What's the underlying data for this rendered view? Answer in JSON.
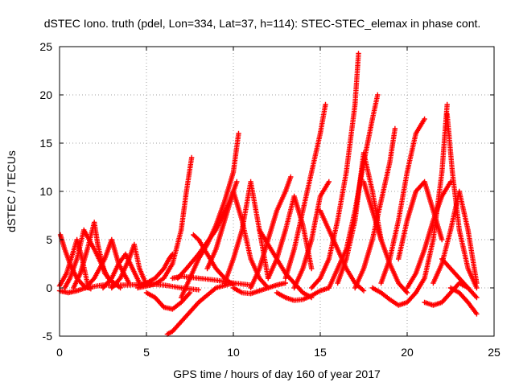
{
  "chart_data": {
    "type": "scatter",
    "title": "dSTEC Iono. truth (pdel, Lon=334, Lat=37, h=114): STEC-STEC_elemax in phase cont.",
    "xlabel": "GPS time / hours of day 160 of year 2017",
    "ylabel": "dSTEC  / TECUs",
    "xlim": [
      0,
      25
    ],
    "ylim": [
      -5,
      25
    ],
    "xticks": [
      0,
      5,
      10,
      15,
      20,
      25
    ],
    "yticks": [
      -5,
      0,
      5,
      10,
      15,
      20,
      25
    ],
    "xtick_labels": [
      "0",
      "5",
      "10",
      "15",
      "20",
      "25"
    ],
    "ytick_labels": [
      "-5",
      "0",
      "5",
      "10",
      "15",
      "20",
      "25"
    ],
    "grid": true,
    "legend": "none",
    "marker": "+",
    "color": "#ff0000",
    "series": [
      {
        "x": [
          0.05,
          0.3,
          0.6,
          1.0,
          1.4,
          1.8
        ],
        "y": [
          5.5,
          4.0,
          2.5,
          1.0,
          0.2,
          -0.1
        ]
      },
      {
        "x": [
          0.0,
          0.4,
          0.8,
          1.0,
          1.3,
          1.6
        ],
        "y": [
          0.2,
          1.5,
          3.8,
          5.0,
          3.0,
          0.5
        ]
      },
      {
        "x": [
          0.3,
          0.6,
          1.0,
          1.4,
          2.0,
          2.8,
          3.5
        ],
        "y": [
          0.0,
          1.0,
          3.0,
          6.0,
          4.0,
          1.0,
          0.0
        ]
      },
      {
        "x": [
          0.8,
          1.2,
          1.6,
          2.0,
          2.2,
          2.6,
          3.2
        ],
        "y": [
          0.0,
          1.5,
          4.0,
          6.8,
          4.5,
          1.5,
          0.3
        ]
      },
      {
        "x": [
          1.5,
          2.0,
          2.6,
          3.0,
          3.4,
          4.0
        ],
        "y": [
          0.0,
          1.0,
          3.0,
          5.0,
          2.5,
          0.5
        ]
      },
      {
        "x": [
          2.5,
          3.0,
          3.4,
          3.8,
          4.2,
          4.6
        ],
        "y": [
          0.0,
          1.0,
          2.5,
          3.5,
          2.0,
          0.5
        ]
      },
      {
        "x": [
          3.0,
          3.5,
          4.0,
          4.3,
          4.6,
          5.0
        ],
        "y": [
          0.0,
          1.0,
          3.0,
          4.5,
          2.0,
          0.3
        ]
      },
      {
        "x": [
          0.0,
          0.5,
          1.0,
          1.5,
          2.5,
          4.0,
          5.0,
          6.0,
          7.0,
          8.0
        ],
        "y": [
          -0.3,
          -0.5,
          -0.3,
          0.0,
          0.3,
          0.3,
          0.4,
          0.3,
          0.0,
          -0.2
        ]
      },
      {
        "x": [
          4.5,
          5.0,
          5.5,
          6.0,
          6.3,
          6.5
        ],
        "y": [
          0.2,
          0.5,
          1.0,
          2.0,
          3.0,
          3.5
        ]
      },
      {
        "x": [
          4.5,
          5.0,
          5.5,
          6.0,
          6.5,
          7.0,
          7.3,
          7.6
        ],
        "y": [
          0.0,
          0.2,
          0.4,
          1.0,
          2.5,
          6.0,
          10.0,
          13.5
        ]
      },
      {
        "x": [
          5.0,
          5.5,
          6.0,
          6.5,
          7.0,
          7.5
        ],
        "y": [
          -0.5,
          -1.0,
          -2.0,
          -2.2,
          -1.5,
          -0.5
        ]
      },
      {
        "x": [
          6.2,
          6.5,
          7.0,
          7.5,
          8.0,
          9.0,
          10.0
        ],
        "y": [
          -4.8,
          -4.5,
          -3.5,
          -2.5,
          -1.5,
          0.0,
          0.5
        ]
      },
      {
        "x": [
          7.0,
          7.5,
          8.0,
          8.5,
          9.0,
          9.5,
          10.0,
          10.3
        ],
        "y": [
          -1.0,
          1.0,
          3.0,
          4.5,
          6.5,
          9.0,
          12.0,
          16.0
        ]
      },
      {
        "x": [
          6.8,
          7.3,
          8.0,
          9.0,
          9.8,
          10.2
        ],
        "y": [
          1.0,
          2.0,
          3.5,
          6.0,
          9.0,
          11.0
        ]
      },
      {
        "x": [
          7.7,
          8.0,
          8.5,
          9.0,
          9.5,
          10.0
        ],
        "y": [
          5.5,
          5.0,
          3.5,
          2.0,
          1.0,
          0.3
        ]
      },
      {
        "x": [
          6.5,
          7.0,
          8.0,
          9.0,
          10.0,
          11.0
        ],
        "y": [
          1.0,
          1.2,
          1.0,
          0.8,
          0.5,
          0.3
        ]
      },
      {
        "x": [
          8.5,
          9.0,
          9.5,
          10.0,
          10.5,
          11.0,
          11.5,
          12.0
        ],
        "y": [
          2.0,
          4.0,
          7.0,
          10.0,
          7.0,
          3.0,
          1.0,
          0.0
        ]
      },
      {
        "x": [
          9.5,
          10.0,
          10.5,
          11.0,
          11.5,
          12.0
        ],
        "y": [
          0.5,
          3.0,
          6.0,
          11.0,
          6.0,
          1.0
        ]
      },
      {
        "x": [
          10.0,
          10.5,
          11.0,
          11.5,
          12.0,
          12.5,
          13.0
        ],
        "y": [
          0.0,
          -0.5,
          -0.6,
          -0.3,
          0.0,
          0.3,
          0.5
        ]
      },
      {
        "x": [
          11.0,
          11.5,
          12.0,
          12.5,
          13.0,
          13.3
        ],
        "y": [
          0.0,
          2.0,
          5.0,
          8.0,
          10.0,
          11.5
        ]
      },
      {
        "x": [
          11.5,
          12.0,
          12.5,
          13.0,
          13.5,
          14.0,
          14.5
        ],
        "y": [
          6.0,
          4.5,
          3.0,
          1.5,
          0.5,
          -0.5,
          -1.0
        ]
      },
      {
        "x": [
          12.0,
          12.5,
          13.0,
          13.5,
          14.0,
          14.5
        ],
        "y": [
          1.0,
          3.0,
          6.0,
          9.5,
          6.5,
          2.0
        ]
      },
      {
        "x": [
          12.5,
          13.0,
          13.5,
          14.0,
          14.5,
          15.0,
          15.5
        ],
        "y": [
          -0.5,
          -1.0,
          -1.3,
          -1.2,
          -0.8,
          -0.3,
          0.0
        ]
      },
      {
        "x": [
          13.0,
          13.5,
          14.0,
          14.5,
          15.0,
          15.3
        ],
        "y": [
          1.0,
          4.0,
          8.0,
          12.0,
          16.0,
          19.0
        ]
      },
      {
        "x": [
          13.5,
          14.0,
          14.5,
          15.0,
          15.5
        ],
        "y": [
          0.0,
          2.0,
          5.0,
          9.5,
          11.0
        ]
      },
      {
        "x": [
          15.0,
          15.5,
          16.0,
          16.5,
          17.0,
          17.5
        ],
        "y": [
          8.0,
          6.0,
          4.0,
          2.0,
          0.5,
          -0.3
        ]
      },
      {
        "x": [
          14.5,
          15.0,
          15.5,
          16.0,
          16.5,
          17.0,
          17.2
        ],
        "y": [
          0.0,
          1.0,
          3.0,
          7.0,
          12.0,
          19.0,
          24.3
        ]
      },
      {
        "x": [
          15.5,
          16.0,
          16.5,
          17.0,
          17.5,
          18.0,
          18.3
        ],
        "y": [
          0.0,
          2.0,
          4.0,
          8.0,
          13.0,
          17.5,
          20.0
        ]
      },
      {
        "x": [
          16.0,
          16.5,
          17.0,
          17.5,
          18.0,
          18.5
        ],
        "y": [
          0.5,
          3.0,
          7.0,
          14.0,
          10.0,
          5.0
        ]
      },
      {
        "x": [
          17.0,
          17.5,
          18.0,
          18.5,
          19.0,
          19.3
        ],
        "y": [
          0.0,
          2.0,
          5.0,
          9.0,
          13.0,
          16.5
        ]
      },
      {
        "x": [
          17.5,
          18.0,
          18.5,
          19.0,
          19.5,
          20.0
        ],
        "y": [
          11.0,
          8.0,
          5.0,
          2.5,
          0.5,
          -0.5
        ]
      },
      {
        "x": [
          18.0,
          18.5,
          19.0,
          19.5,
          20.0,
          20.5
        ],
        "y": [
          0.0,
          -0.5,
          -1.2,
          -1.8,
          -1.5,
          -0.5
        ]
      },
      {
        "x": [
          18.5,
          19.0,
          19.5,
          20.0,
          20.5,
          21.0
        ],
        "y": [
          0.5,
          3.0,
          7.0,
          12.0,
          16.0,
          17.5
        ]
      },
      {
        "x": [
          19.5,
          20.0,
          20.5,
          21.0,
          21.5,
          22.0
        ],
        "y": [
          3.0,
          7.0,
          10.0,
          11.0,
          8.0,
          5.0
        ]
      },
      {
        "x": [
          20.0,
          20.5,
          21.0,
          21.5,
          22.0,
          22.5
        ],
        "y": [
          0.0,
          1.5,
          4.0,
          7.0,
          9.5,
          11.0
        ]
      },
      {
        "x": [
          20.5,
          21.0,
          21.5,
          22.0,
          22.3
        ],
        "y": [
          -0.5,
          1.0,
          5.0,
          12.0,
          19.0
        ]
      },
      {
        "x": [
          21.0,
          21.5,
          22.0,
          22.5,
          23.0,
          23.5
        ],
        "y": [
          -1.5,
          -1.8,
          -1.5,
          -0.5,
          0.5,
          0.0
        ]
      },
      {
        "x": [
          21.5,
          22.0,
          22.5,
          23.0,
          23.5,
          24.0
        ],
        "y": [
          0.5,
          2.5,
          6.0,
          10.0,
          6.0,
          0.5
        ]
      },
      {
        "x": [
          22.3,
          22.6,
          23.0,
          23.5,
          24.0
        ],
        "y": [
          18.0,
          12.0,
          6.0,
          2.0,
          0.0
        ]
      },
      {
        "x": [
          22.5,
          23.0,
          23.5,
          24.0
        ],
        "y": [
          0.0,
          -0.5,
          -1.5,
          -2.7
        ]
      },
      {
        "x": [
          22.0,
          22.5,
          23.0,
          23.5,
          24.0
        ],
        "y": [
          3.0,
          2.0,
          1.0,
          0.0,
          -1.0
        ]
      }
    ]
  }
}
